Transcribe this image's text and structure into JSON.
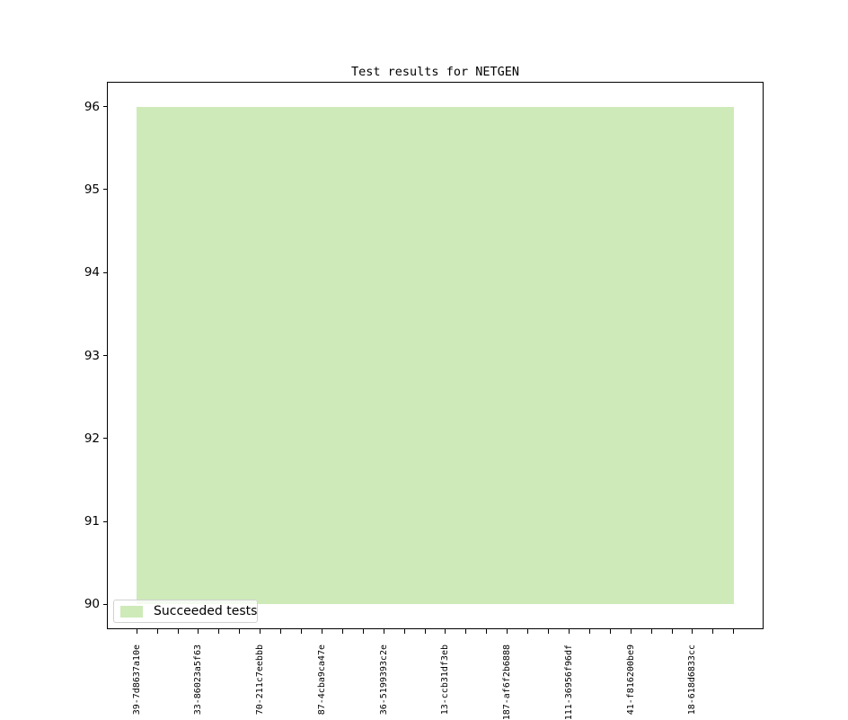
{
  "chart_data": {
    "type": "area",
    "title": "Test results for NETGEN",
    "xlabel": "",
    "ylabel": "",
    "grid": false,
    "legend_position": "lower left",
    "x_points": 30,
    "label_every_n_ticks": 3,
    "x_tick_labels": [
      "39-7d8637a10e",
      "33-86023a5f63",
      "70-211c7eebbb",
      "87-4cba9ca47e",
      "36-5199393c2e",
      "13-ccb31df3eb",
      "187-af6f2b6888",
      "111-36956f96df",
      "41-f816200be9",
      "18-618d6833cc"
    ],
    "yticks": [
      90,
      91,
      92,
      93,
      94,
      95,
      96
    ],
    "ylim": [
      89.7,
      96.3
    ],
    "xlim": [
      -1.45,
      30.45
    ],
    "series": [
      {
        "name": "Succeeded tests",
        "baseline": 90,
        "fill_color": "#cdeab8",
        "values": [
          96,
          96,
          96,
          96,
          96,
          96,
          96,
          96,
          96,
          96,
          96,
          96,
          96,
          96,
          96,
          96,
          96,
          96,
          96,
          96,
          96,
          96,
          96,
          96,
          96,
          96,
          96,
          96,
          96,
          96
        ]
      }
    ]
  },
  "legend": {
    "label": "Succeeded tests"
  },
  "colors": {
    "fill": "#cdeab8",
    "axis": "#000000",
    "legend_border": "#d2d2d2"
  }
}
